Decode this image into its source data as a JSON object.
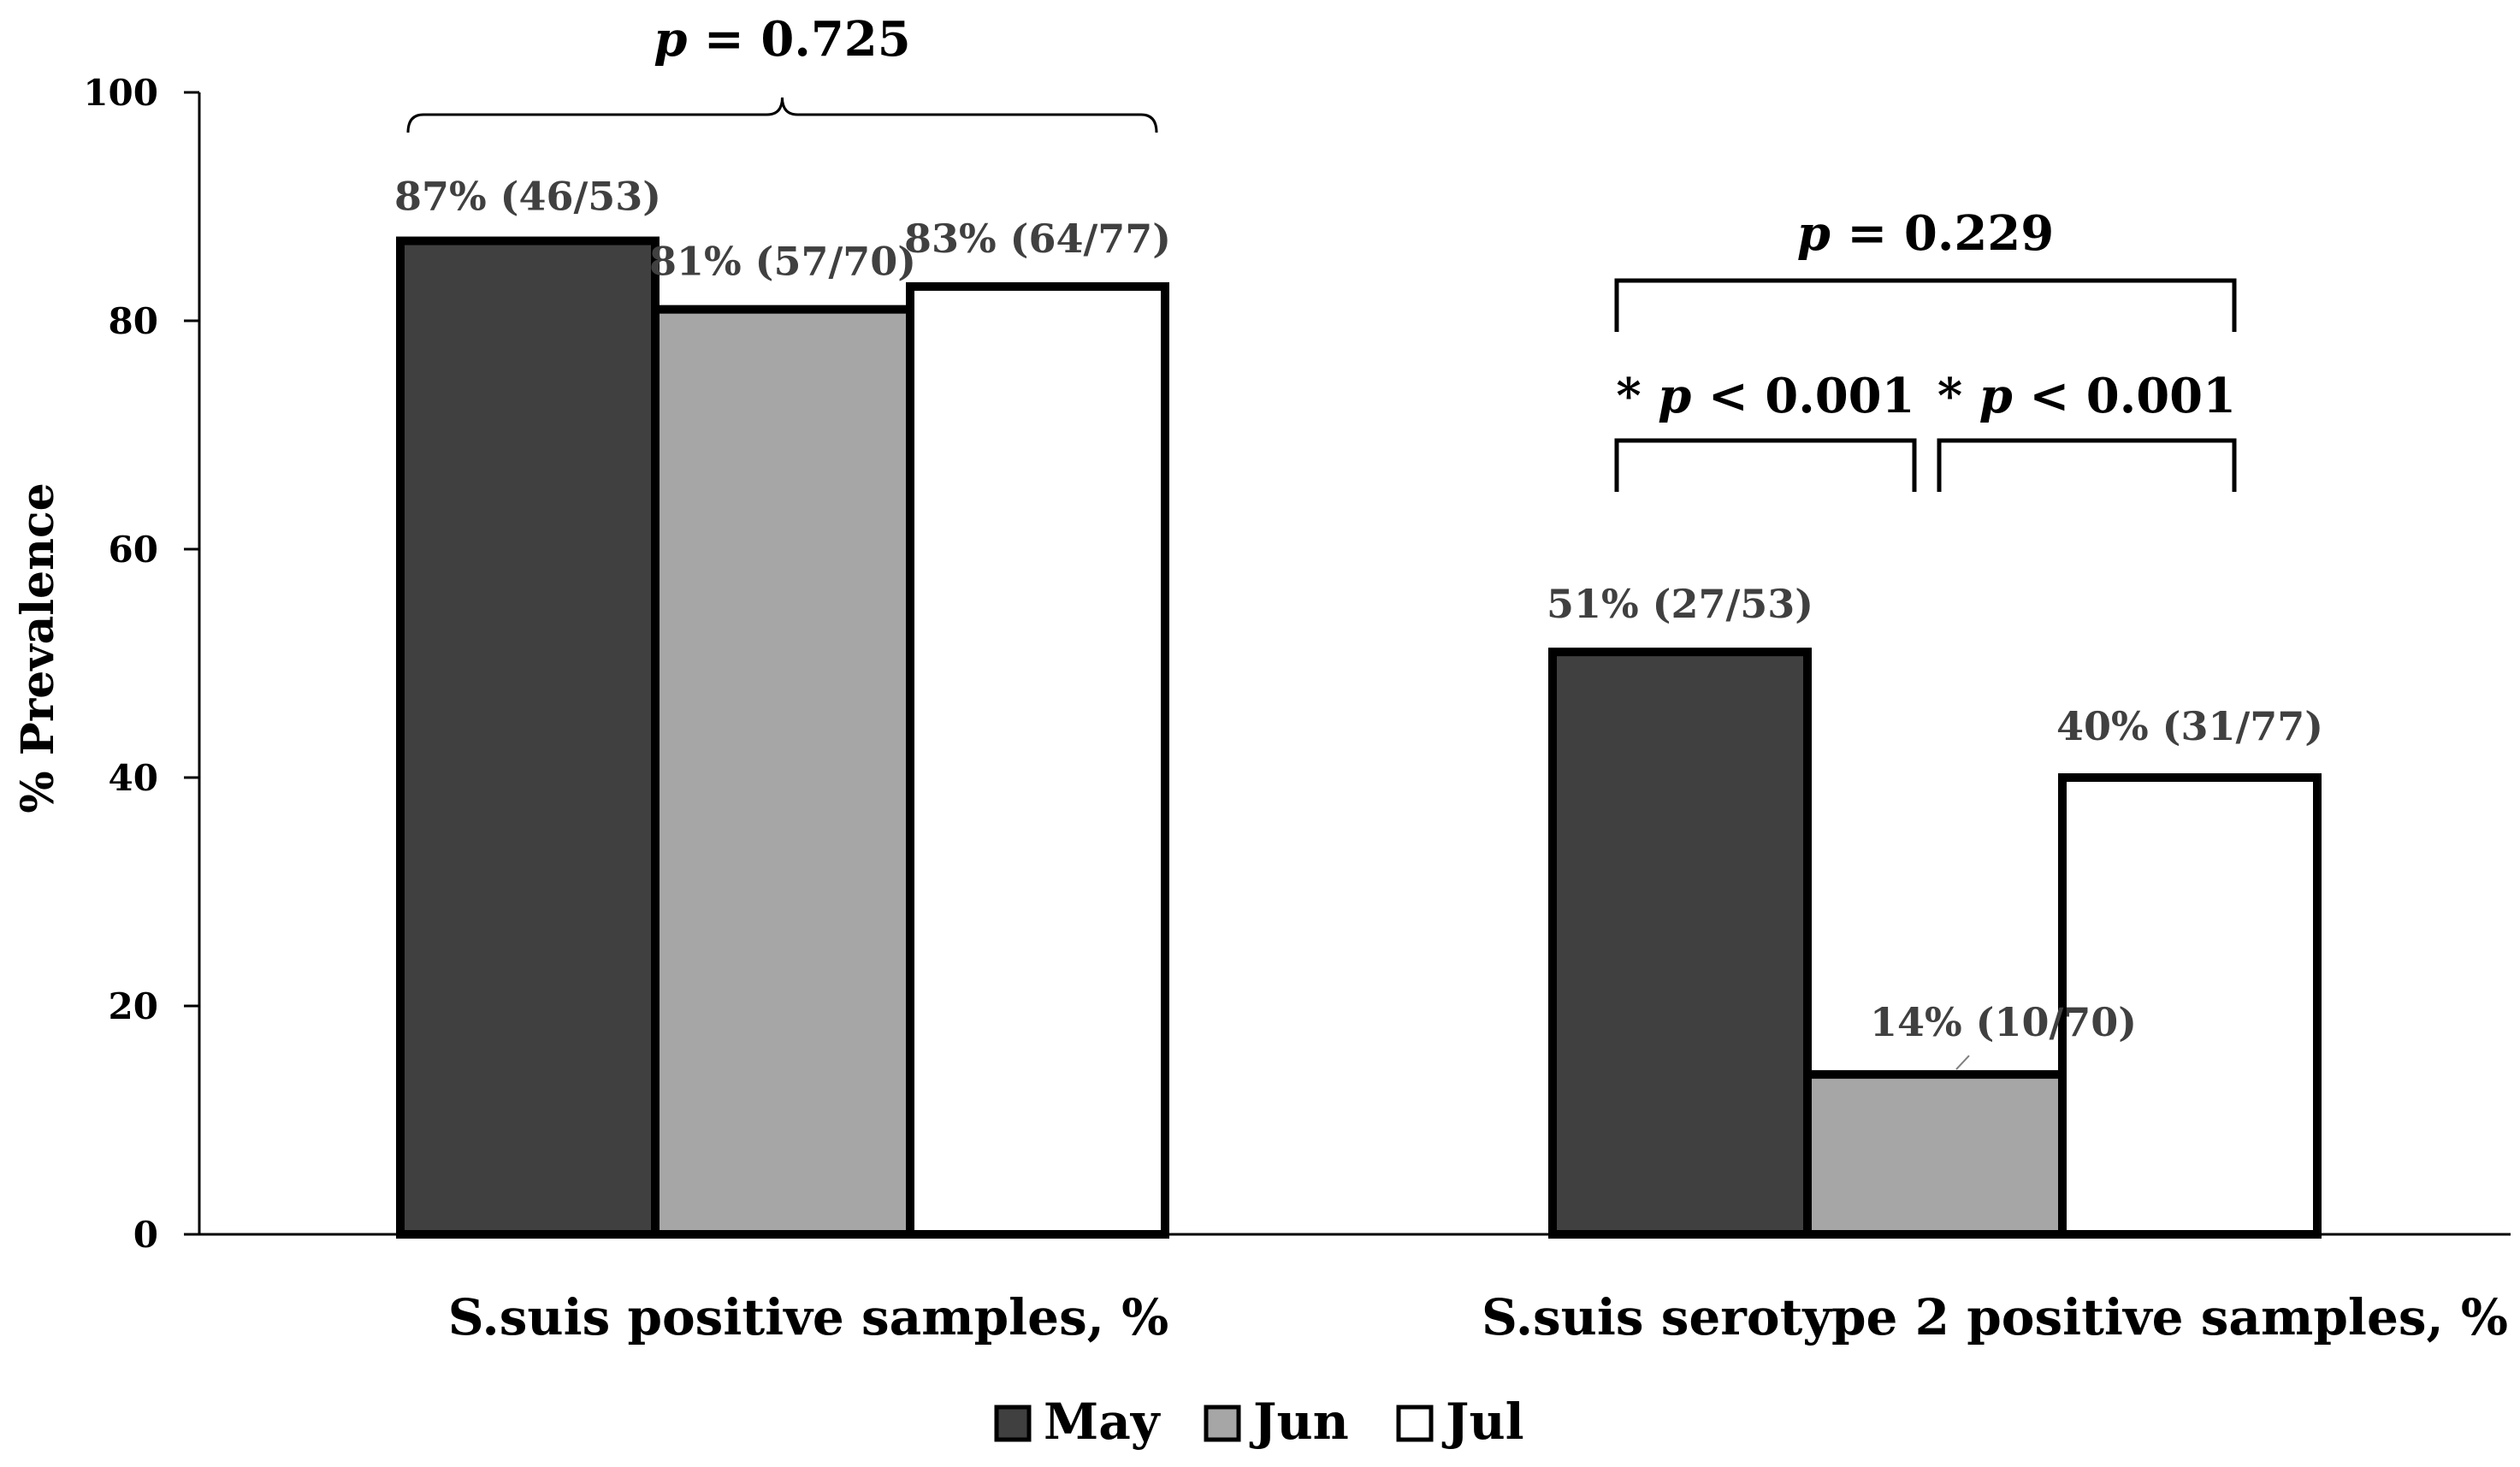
{
  "chart_data": {
    "type": "bar",
    "title": "",
    "ylabel": "% Prevalence",
    "xlabel": "",
    "ylim": [
      0,
      100
    ],
    "yticks": [
      0,
      20,
      40,
      60,
      80,
      100
    ],
    "categories": [
      "S.suis positive samples, %",
      "S.suis serotype 2 positive samples, %"
    ],
    "series": [
      {
        "name": "May",
        "color": "#404040",
        "values": [
          87,
          51
        ],
        "labels": [
          "87% (46/53)",
          "51% (27/53)"
        ]
      },
      {
        "name": "Jun",
        "color": "#a6a6a6",
        "values": [
          81,
          14
        ],
        "labels": [
          "81% (57/70)",
          "14% (10/70)"
        ]
      },
      {
        "name": "Jul",
        "color": "#ffffff",
        "values": [
          83,
          40
        ],
        "labels": [
          "83% (64/77)",
          "40% (31/77)"
        ]
      }
    ],
    "annotations": [
      {
        "category": 0,
        "from": "May",
        "to": "Jul",
        "star": "",
        "p": "p",
        "text": " = 0.725"
      },
      {
        "category": 1,
        "from": "May",
        "to": "Jul",
        "star": "",
        "p": "p",
        "text": " = 0.229"
      },
      {
        "category": 1,
        "from": "May",
        "to": "Jun",
        "star": "* ",
        "p": "p",
        "text": " < 0.001"
      },
      {
        "category": 1,
        "from": "Jun",
        "to": "Jul",
        "star": "* ",
        "p": "p",
        "text": " < 0.001"
      }
    ],
    "legend": {
      "position": "bottom",
      "entries": [
        "May",
        "Jun",
        "Jul"
      ]
    },
    "grid": false
  }
}
